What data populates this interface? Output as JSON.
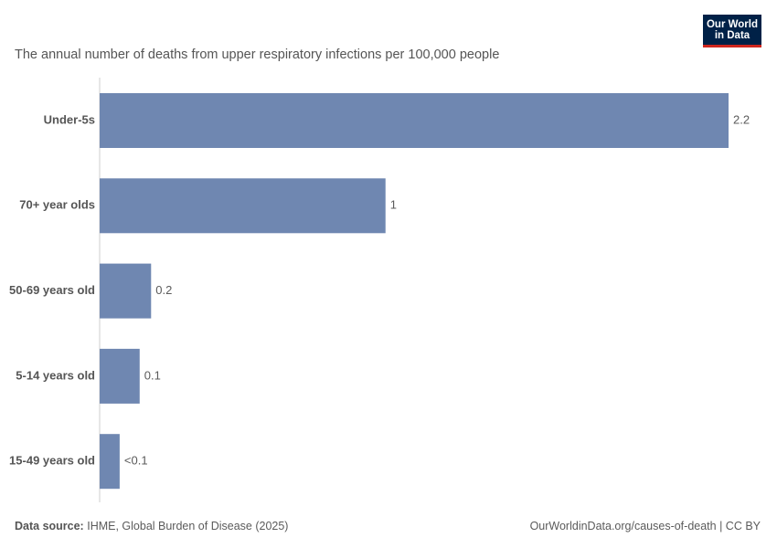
{
  "logo": {
    "line1": "Our World",
    "line2": "in Data"
  },
  "subtitle": "The annual number of deaths from upper respiratory infections per 100,000 people",
  "chart_data": {
    "type": "bar",
    "orientation": "horizontal",
    "categories": [
      "Under-5s",
      "70+ year olds",
      "50-69 years old",
      "5-14 years old",
      "15-49 years old"
    ],
    "values": [
      2.2,
      1.0,
      0.18,
      0.14,
      0.07
    ],
    "value_labels": [
      "2.2",
      "1",
      "0.2",
      "0.1",
      "<0.1"
    ],
    "xlim": [
      0,
      2.2
    ],
    "grid": false,
    "bar_color": "#6f87b1"
  },
  "footer": {
    "source_label": "Data source:",
    "source_text": "IHME, Global Burden of Disease (2025)",
    "right_text": "OurWorldinData.org/causes-of-death | CC BY"
  }
}
